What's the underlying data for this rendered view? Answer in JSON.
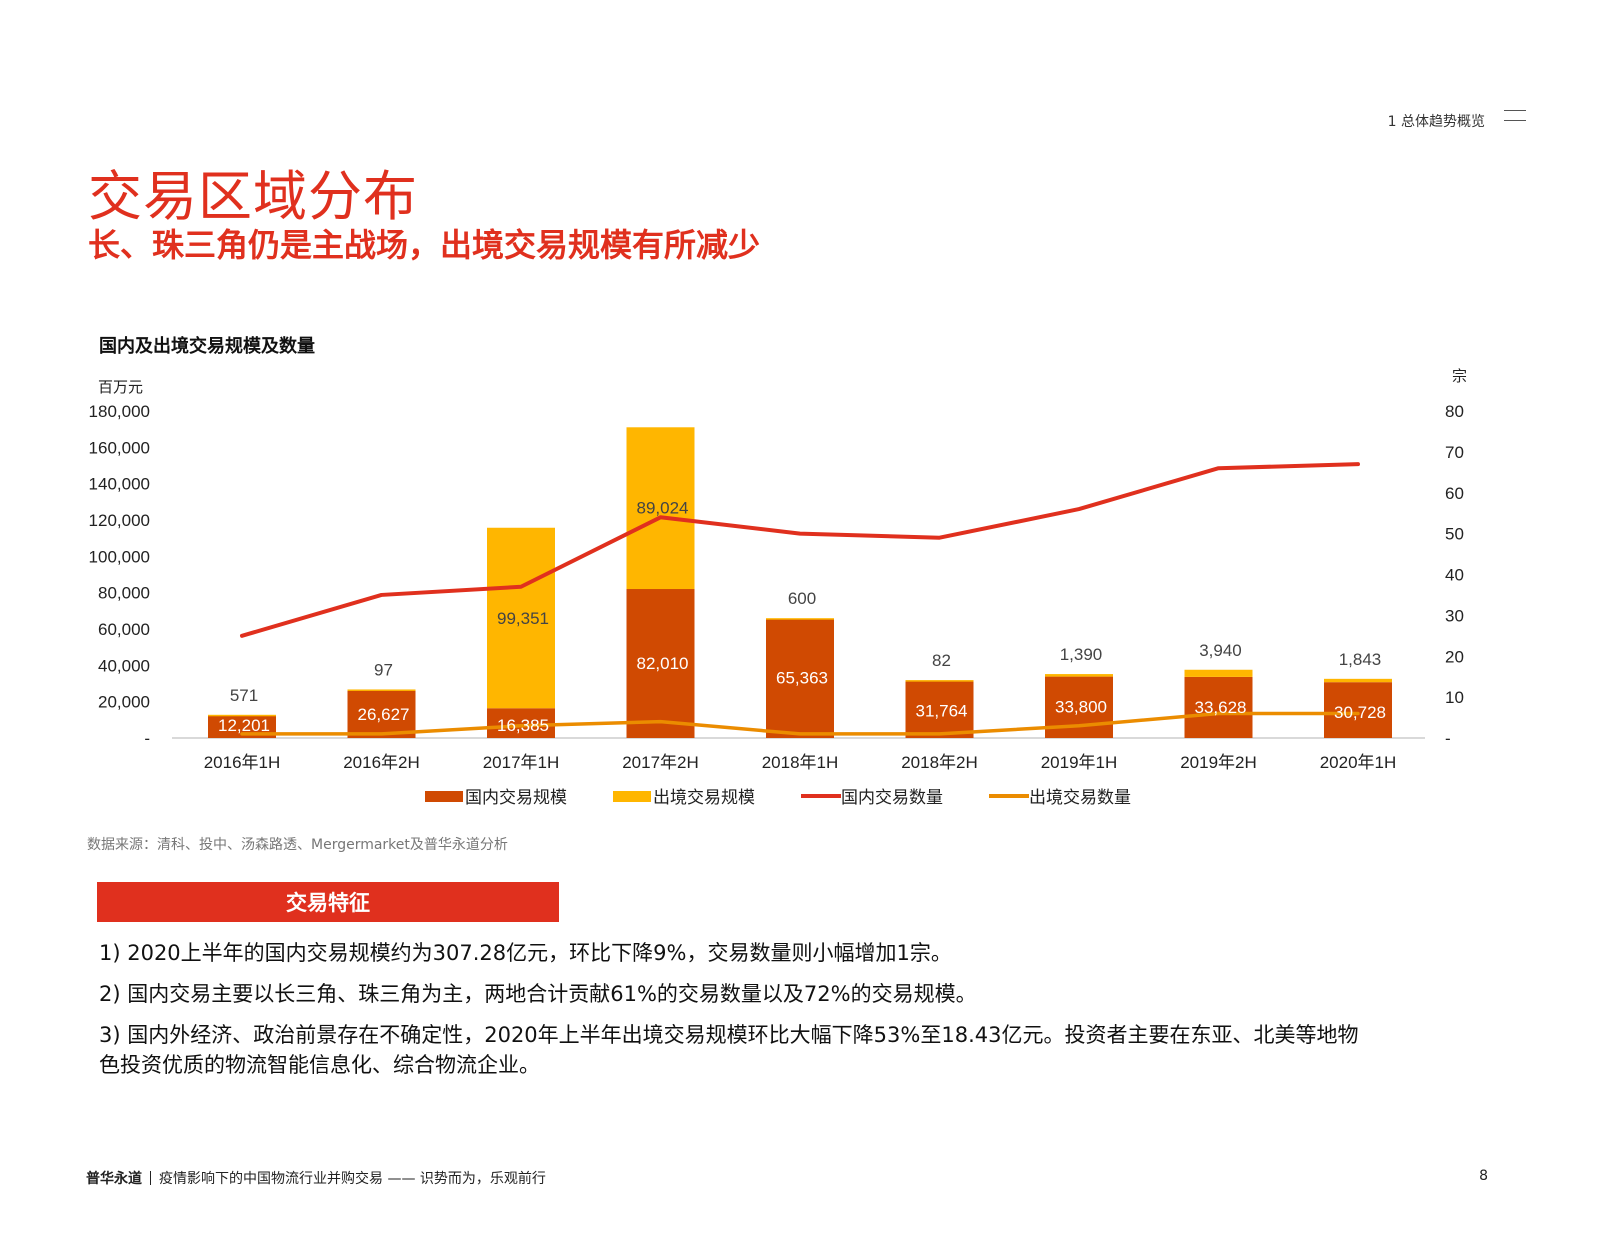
{
  "header": {
    "section_label": "1 总体趋势概览",
    "title": "交易区域分布",
    "subtitle": "长、珠三角仍是主战场，出境交易规模有所减少"
  },
  "chart": {
    "title": "国内及出境交易规模及数量",
    "source": "数据来源：清科、投中、汤森路透、Mergermarket及普华永道分析"
  },
  "chart_data": {
    "type": "bar",
    "stacked": true,
    "categories": [
      "2016年1H",
      "2016年2H",
      "2017年1H",
      "2017年2H",
      "2018年1H",
      "2018年2H",
      "2019年1H",
      "2019年2H",
      "2020年1H"
    ],
    "y_left": {
      "label": "百万元",
      "ylim": [
        0,
        180000
      ],
      "ticks": [
        "-",
        "20,000",
        "40,000",
        "60,000",
        "80,000",
        "100,000",
        "120,000",
        "140,000",
        "160,000",
        "180,000"
      ]
    },
    "y_right": {
      "label": "宗",
      "ylim": [
        0,
        80
      ],
      "ticks": [
        "-",
        "10",
        "20",
        "30",
        "40",
        "50",
        "60",
        "70",
        "80"
      ]
    },
    "bar_series": [
      {
        "name": "国内交易规模",
        "color": "#d04a02",
        "values": [
          12201,
          26627,
          16385,
          82010,
          65363,
          31764,
          33800,
          33628,
          30728
        ],
        "labels": [
          "12,201",
          "26,627",
          "16,385",
          "82,010",
          "65,363",
          "31,764",
          "33,800",
          "33,628",
          "30,728"
        ]
      },
      {
        "name": "出境交易规模",
        "color": "#ffb600",
        "values": [
          571,
          97,
          99351,
          89024,
          600,
          82,
          1390,
          3940,
          1843
        ],
        "labels": [
          "571",
          "97",
          "99,351",
          "89,024",
          "600",
          "82",
          "1,390",
          "3,940",
          "1,843"
        ]
      }
    ],
    "line_series": [
      {
        "name": "国内交易数量",
        "color": "#e0301e",
        "axis": "right",
        "values": [
          25,
          35,
          37,
          54,
          50,
          49,
          56,
          66,
          67
        ]
      },
      {
        "name": "出境交易数量",
        "color": "#eb8c00",
        "axis": "right",
        "values": [
          1,
          1,
          3,
          4,
          1,
          1,
          3,
          6,
          6
        ]
      }
    ],
    "legend_position": "bottom",
    "grid": false
  },
  "features": {
    "heading": "交易特征",
    "items": [
      "1) 2020上半年的国内交易规模约为307.28亿元，环比下降9%，交易数量则小幅增加1宗。",
      "2) 国内交易主要以长三角、珠三角为主，两地合计贡献61%的交易数量以及72%的交易规模。",
      "3) 国内外经济、政治前景存在不确定性，2020年上半年出境交易规模环比大幅下降53%至18.43亿元。投资者主要在东亚、北美等地物色投资优质的物流智能信息化、综合物流企业。"
    ]
  },
  "footer": {
    "brand": "普华永道",
    "report_title": "疫情影响下的中国物流行业并购交易 —— 识势而为，乐观前行",
    "page_number": "8"
  }
}
